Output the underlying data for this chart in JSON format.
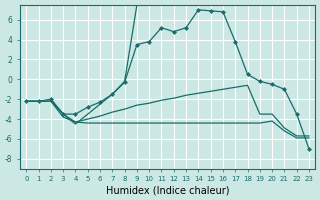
{
  "xlabel": "Humidex (Indice chaleur)",
  "bg_color": "#cce8e4",
  "grid_color": "#ffffff",
  "line_color": "#1a6b6b",
  "xlim": [
    -0.5,
    23.5
  ],
  "ylim": [
    -9,
    7.5
  ],
  "yticks": [
    -8,
    -6,
    -4,
    -2,
    0,
    2,
    4,
    6
  ],
  "xticks": [
    0,
    1,
    2,
    3,
    4,
    5,
    6,
    7,
    8,
    9,
    10,
    11,
    12,
    13,
    14,
    15,
    16,
    17,
    18,
    19,
    20,
    21,
    22,
    23
  ],
  "series": {
    "line1_x": [
      0,
      1,
      2,
      3,
      4,
      5,
      6,
      7,
      8,
      9,
      10,
      11,
      12,
      13,
      14,
      15,
      16,
      17,
      18,
      19,
      20,
      21,
      22,
      23
    ],
    "line1_y": [
      -2.2,
      -2.2,
      -2.0,
      -3.5,
      -3.5,
      -2.8,
      -2.3,
      -1.5,
      -0.3,
      3.5,
      3.8,
      5.2,
      4.8,
      5.2,
      7.0,
      6.9,
      6.8,
      3.8,
      0.5,
      -0.2,
      -0.5,
      -1.0,
      -3.5,
      -7.0
    ],
    "line2_x": [
      0,
      1,
      2,
      3,
      4,
      5,
      6,
      7,
      8,
      9,
      10,
      11,
      12,
      13,
      14,
      15,
      16,
      17,
      18,
      19,
      20,
      21,
      22,
      23
    ],
    "line2_y": [
      -2.2,
      -2.2,
      -2.2,
      -3.5,
      -4.3,
      -4.0,
      -3.7,
      -3.3,
      -3.0,
      -2.6,
      -2.4,
      -2.1,
      -1.9,
      -1.6,
      -1.4,
      -1.2,
      -1.0,
      -0.8,
      -0.6,
      -3.5,
      -3.5,
      -4.9,
      -5.7,
      -5.7
    ],
    "line3_x": [
      0,
      1,
      2,
      3,
      4,
      5,
      6,
      7,
      8,
      9,
      10,
      11,
      12,
      13,
      14,
      15,
      16,
      17,
      18,
      19,
      20,
      21,
      22,
      23
    ],
    "line3_y": [
      -2.2,
      -2.2,
      -2.2,
      -3.8,
      -4.3,
      -4.4,
      -4.4,
      -4.4,
      -4.4,
      -4.4,
      -4.4,
      -4.4,
      -4.4,
      -4.4,
      -4.4,
      -4.4,
      -4.4,
      -4.4,
      -4.4,
      -4.4,
      -4.2,
      -5.2,
      -5.9,
      -5.9
    ],
    "line4_x": [
      2,
      3,
      4,
      5,
      6,
      7,
      8,
      9
    ],
    "line4_y": [
      -2.0,
      -3.5,
      -4.5,
      -3.5,
      -2.5,
      -1.5,
      -0.2,
      7.5
    ]
  }
}
